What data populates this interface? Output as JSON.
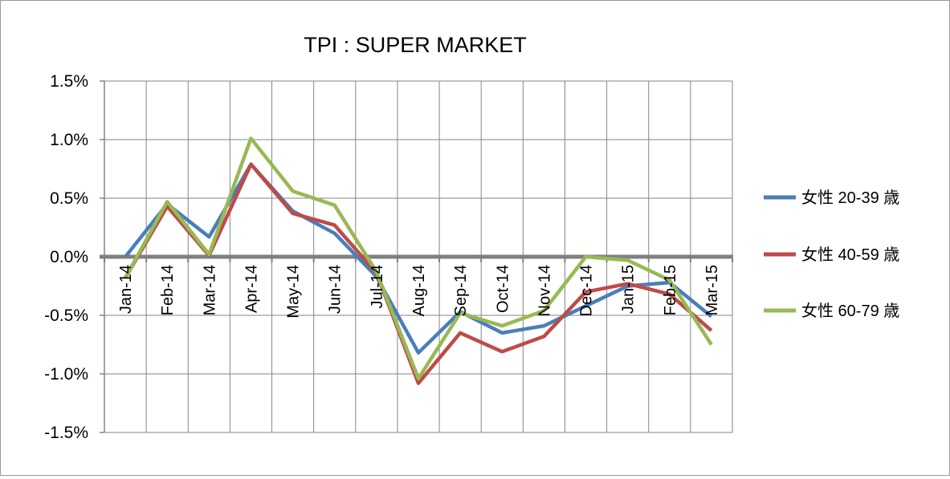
{
  "chart_data": {
    "type": "line",
    "title": "TPI : SUPER MARKET",
    "xlabel": "",
    "ylabel": "",
    "categories": [
      "Jan-14",
      "Feb-14",
      "Mar-14",
      "Apr-14",
      "May-14",
      "Jun-14",
      "Jul-14",
      "Aug-14",
      "Sep-14",
      "Oct-14",
      "Nov-14",
      "Dec-14",
      "Jan-15",
      "Feb-15",
      "Mar-15"
    ],
    "ylim": [
      -0.015,
      0.015
    ],
    "yticks": [
      0.015,
      0.01,
      0.005,
      0.0,
      -0.005,
      -0.01,
      -0.015
    ],
    "ytick_labels": [
      "1.5%",
      "1.0%",
      "0.5%",
      "0.0%",
      "-0.5%",
      "-1.0%",
      "-1.5%"
    ],
    "grid": true,
    "legend_position": "right",
    "series": [
      {
        "name": "女性 20-39 歳",
        "color": "#4a7ebb",
        "values": [
          0.0,
          0.0045,
          0.0017,
          0.0079,
          0.0039,
          0.002,
          -0.0017,
          -0.0082,
          -0.0047,
          -0.0065,
          -0.0059,
          -0.0042,
          -0.0025,
          -0.0022,
          -0.0051
        ]
      },
      {
        "name": "女性 40-59 歳",
        "color": "#be4b48",
        "values": [
          -0.0018,
          0.0043,
          0.0001,
          0.0079,
          0.0037,
          0.0027,
          -0.0014,
          -0.0108,
          -0.0065,
          -0.0081,
          -0.0068,
          -0.003,
          -0.0023,
          -0.0032,
          -0.0063
        ]
      },
      {
        "name": "女性 60-79 歳",
        "color": "#98b954",
        "values": [
          -0.0018,
          0.0047,
          0.0002,
          0.0101,
          0.0056,
          0.0044,
          -0.0013,
          -0.0104,
          -0.0048,
          -0.0059,
          -0.0046,
          0.0,
          -0.0003,
          -0.002,
          -0.0075
        ]
      }
    ]
  }
}
